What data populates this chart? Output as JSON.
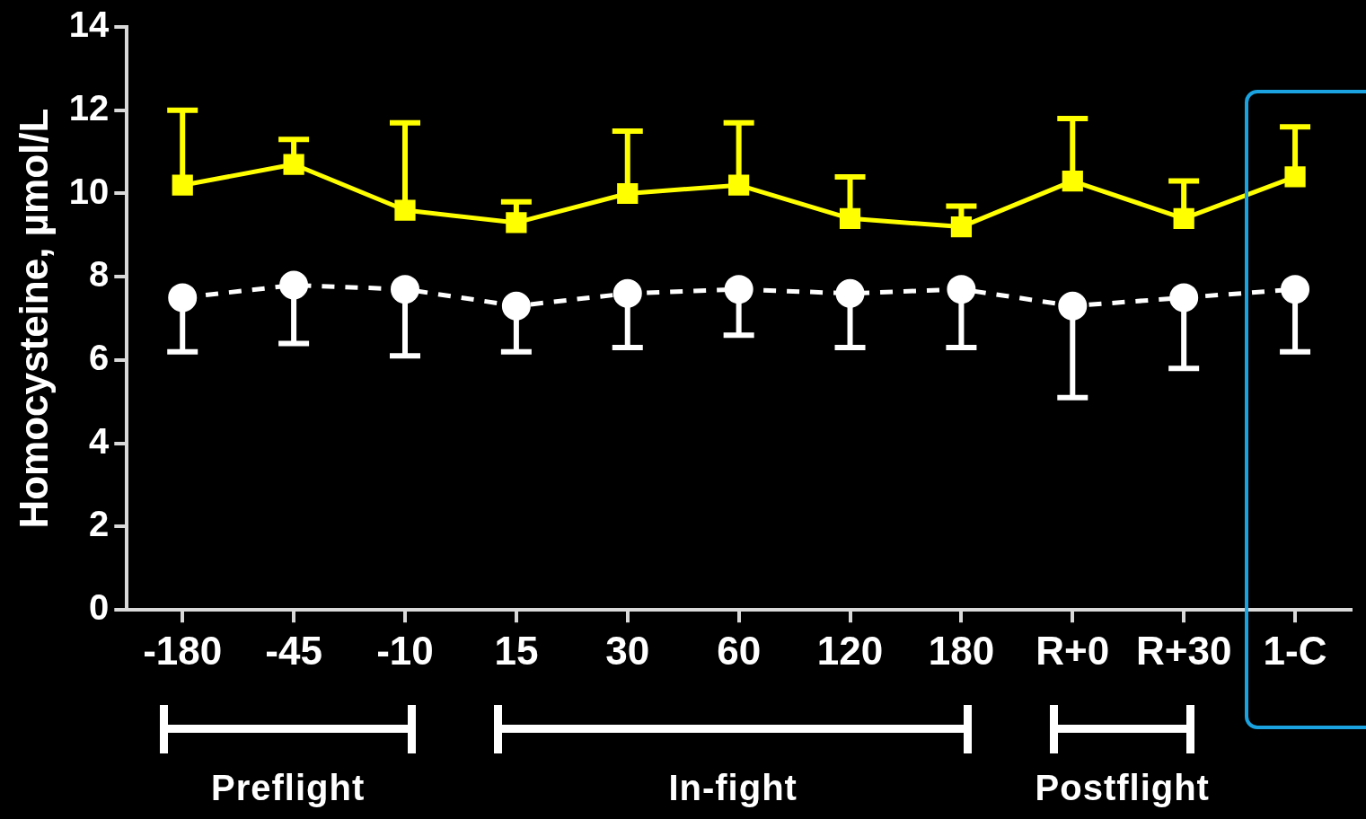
{
  "chart_data": {
    "type": "line",
    "ylabel": "Homocysteine, µmol/L",
    "categories": [
      "-180",
      "-45",
      "-10",
      "15",
      "30",
      "60",
      "120",
      "180",
      "R+0",
      "R+30",
      "1-C"
    ],
    "ylim": [
      0,
      14
    ],
    "yticks": [
      0,
      2,
      4,
      6,
      8,
      10,
      12,
      14
    ],
    "grid": false,
    "legend": false,
    "series": [
      {
        "color": "#ffff00",
        "marker": "square",
        "line_style": "solid",
        "values": [
          10.2,
          10.7,
          9.6,
          9.3,
          10.0,
          10.2,
          9.4,
          9.2,
          10.3,
          9.4,
          10.4
        ],
        "errors": [
          [
            10.2,
            12.0
          ],
          [
            10.7,
            11.3
          ],
          [
            9.6,
            11.7
          ],
          [
            9.3,
            9.8
          ],
          [
            10.0,
            11.5
          ],
          [
            10.2,
            11.7
          ],
          [
            9.4,
            10.4
          ],
          [
            9.2,
            9.7
          ],
          [
            10.3,
            11.8
          ],
          [
            9.4,
            10.3
          ],
          [
            10.4,
            11.6
          ]
        ]
      },
      {
        "color": "#ffffff",
        "marker": "circle",
        "line_style": "dashed",
        "values": [
          7.5,
          7.8,
          7.7,
          7.3,
          7.6,
          7.7,
          7.6,
          7.7,
          7.3,
          7.5,
          7.7
        ],
        "errors": [
          [
            6.2,
            7.5
          ],
          [
            6.4,
            7.8
          ],
          [
            6.1,
            7.7
          ],
          [
            6.2,
            7.3
          ],
          [
            6.3,
            7.6
          ],
          [
            6.6,
            7.7
          ],
          [
            6.3,
            7.6
          ],
          [
            6.3,
            7.7
          ],
          [
            5.1,
            7.3
          ],
          [
            5.8,
            7.5
          ],
          [
            6.2,
            7.7
          ]
        ]
      }
    ],
    "annotations": [
      "Preflight",
      "In-fight",
      "Postflight"
    ]
  }
}
